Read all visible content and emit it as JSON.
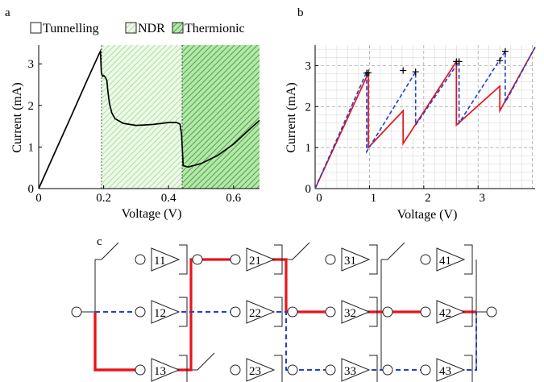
{
  "panel_a": {
    "label": "a",
    "legend": [
      {
        "label": "Tunnelling",
        "icon": "empty-box"
      },
      {
        "label": "NDR",
        "icon": "light-green-hatch"
      },
      {
        "label": "Thermionic",
        "icon": "green-hatch"
      }
    ],
    "regions": [
      {
        "name": "NDR",
        "from": 0.19,
        "to": 0.44,
        "color": "#a9e29b"
      },
      {
        "name": "Thermionic",
        "from": 0.44,
        "to": 0.68,
        "color": "#3fae3a"
      }
    ]
  },
  "panel_b": {
    "label": "b"
  },
  "panel_c": {
    "label": "c",
    "gates": [
      {
        "row": 0,
        "col": 0,
        "label": "11"
      },
      {
        "row": 1,
        "col": 0,
        "label": "12"
      },
      {
        "row": 2,
        "col": 0,
        "label": "13"
      },
      {
        "row": 0,
        "col": 1,
        "label": "21"
      },
      {
        "row": 1,
        "col": 1,
        "label": "22"
      },
      {
        "row": 2,
        "col": 1,
        "label": "23"
      },
      {
        "row": 0,
        "col": 2,
        "label": "31"
      },
      {
        "row": 1,
        "col": 2,
        "label": "32"
      },
      {
        "row": 2,
        "col": 2,
        "label": "33"
      },
      {
        "row": 0,
        "col": 3,
        "label": "41"
      },
      {
        "row": 1,
        "col": 3,
        "label": "42"
      },
      {
        "row": 2,
        "col": 3,
        "label": "43"
      }
    ],
    "colors": {
      "red_path": "#e8141a",
      "blue_path": "#1f3fd6"
    }
  },
  "chart_data": [
    {
      "type": "line",
      "xlabel": "Voltage (V)",
      "ylabel": "Current (mA)",
      "xlim": [
        0,
        0.68
      ],
      "ylim": [
        0,
        3.45
      ],
      "xticks": [
        "0",
        "0.2",
        "0.4",
        "0.6"
      ],
      "xtick_values": [
        0,
        0.2,
        0.4,
        0.6
      ],
      "yticks": [
        "0",
        "1",
        "2",
        "3"
      ],
      "ytick_values": [
        0,
        1,
        2,
        3
      ],
      "grid": false,
      "legend_placement": "top",
      "series": [
        {
          "color": "#000000",
          "x": [
            0,
            0.05,
            0.1,
            0.15,
            0.185,
            0.19,
            0.193,
            0.197,
            0.2,
            0.205,
            0.21,
            0.213,
            0.218,
            0.225,
            0.235,
            0.26,
            0.3,
            0.35,
            0.4,
            0.425,
            0.435,
            0.44,
            0.445,
            0.46,
            0.5,
            0.55,
            0.6,
            0.65,
            0.68
          ],
          "y": [
            0,
            0.87,
            1.74,
            2.62,
            3.22,
            3.3,
            2.78,
            2.7,
            2.72,
            2.68,
            2.6,
            2.35,
            2.05,
            1.82,
            1.68,
            1.57,
            1.52,
            1.54,
            1.59,
            1.59,
            1.55,
            1.3,
            0.55,
            0.52,
            0.6,
            0.79,
            1.07,
            1.43,
            1.64
          ]
        }
      ]
    },
    {
      "type": "line",
      "xlabel": "Voltage (V)",
      "ylabel": "Current (mA)",
      "xlim": [
        0,
        4.05
      ],
      "ylim": [
        0,
        3.5
      ],
      "xticks": [
        "0",
        "1",
        "2",
        "3"
      ],
      "xtick_values": [
        0,
        1,
        2,
        3
      ],
      "yticks": [
        "0",
        "1",
        "2",
        "3"
      ],
      "ytick_values": [
        0,
        1,
        2,
        3
      ],
      "grid": true,
      "series": [
        {
          "color": "#e8141a",
          "style": "solid",
          "x": [
            0,
            0.98,
            0.98,
            1.62,
            1.62,
            2.6,
            2.6,
            3.4,
            3.4,
            4.05
          ],
          "y": [
            0,
            2.82,
            1.0,
            1.9,
            1.1,
            3.1,
            1.55,
            2.5,
            1.9,
            3.45
          ]
        },
        {
          "color": "#1f3fd6",
          "style": "dashed",
          "x": [
            0,
            0.95,
            0.95,
            1.85,
            1.85,
            2.65,
            2.65,
            3.5,
            3.5,
            4.05
          ],
          "y": [
            0,
            2.85,
            0.9,
            2.85,
            1.55,
            3.1,
            1.6,
            3.35,
            2.1,
            3.45
          ]
        }
      ],
      "markers": {
        "symbol": "+",
        "x": [
          0.95,
          0.98,
          1.62,
          1.85,
          2.6,
          2.65,
          3.4,
          3.5
        ],
        "y": [
          2.82,
          2.83,
          2.88,
          2.85,
          3.1,
          3.1,
          3.12,
          3.35
        ]
      }
    }
  ]
}
